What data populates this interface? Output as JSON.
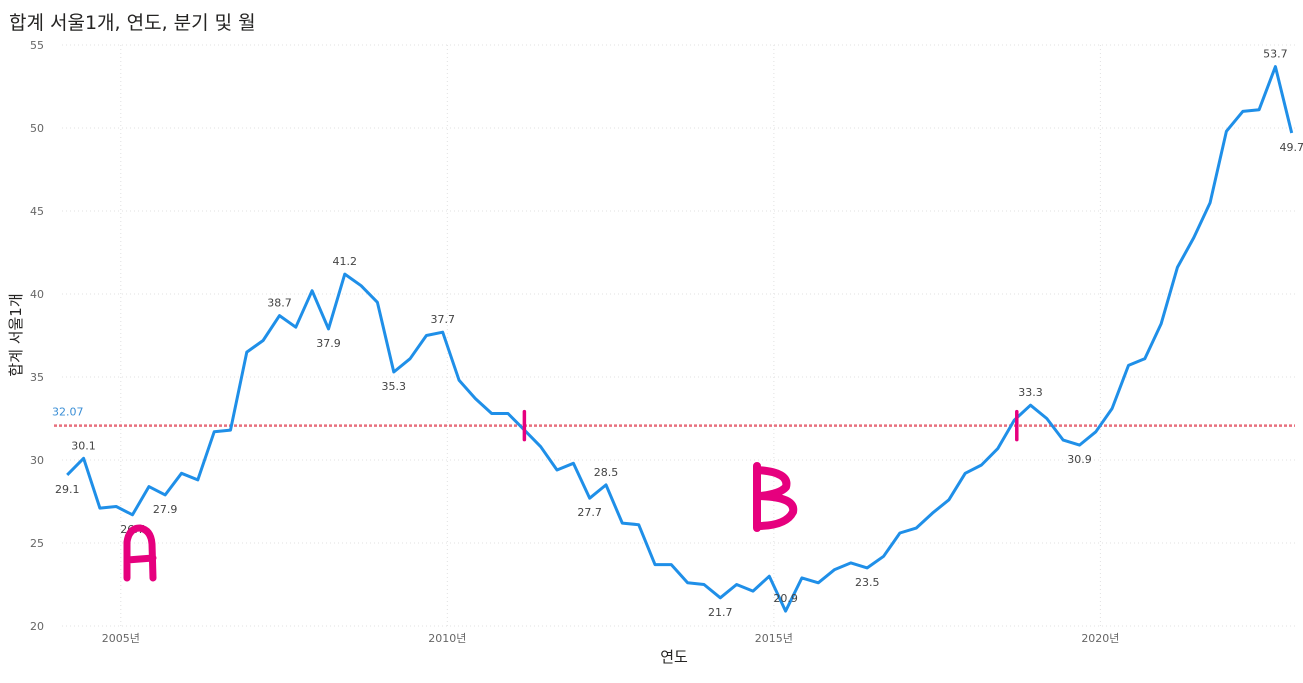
{
  "title": "합계 서울1개, 연도, 분기 및 월",
  "chart_data": {
    "type": "line",
    "xlabel": "연도",
    "ylabel": "합계 서울1개",
    "ylim": [
      20,
      55
    ],
    "yticks": [
      "20",
      "25",
      "30",
      "35",
      "40",
      "45",
      "50",
      "55"
    ],
    "xtick_labels": [
      "2005년",
      "2010년",
      "2015년",
      "2020년"
    ],
    "xtick_years": [
      2005,
      2010,
      2015,
      2020
    ],
    "grid": true,
    "legend": "none",
    "line_color": "#1f8fe8",
    "reference_line": {
      "value": 32.07,
      "label": "32.07",
      "color": "#e8707e",
      "label_color": "#3b8fd6"
    },
    "annotations": {
      "marker_color": "#e6007e",
      "A": "A",
      "B": "B"
    },
    "series": [
      {
        "x": [
          2004.18,
          2004.43,
          2004.68,
          2004.93,
          2005.18,
          2005.43,
          2005.68,
          2005.93,
          2006.18,
          2006.43,
          2006.68,
          2006.93,
          2007.18,
          2007.43,
          2007.68,
          2007.93,
          2008.18,
          2008.43,
          2008.68,
          2008.93,
          2009.18,
          2009.43,
          2009.68,
          2009.93,
          2010.18,
          2010.43,
          2010.68,
          2010.93,
          2011.18,
          2011.43,
          2011.68,
          2011.93,
          2012.18,
          2012.43,
          2012.68,
          2012.93,
          2013.18,
          2013.43,
          2013.68,
          2013.93,
          2014.18,
          2014.43,
          2014.68,
          2014.93,
          2015.18,
          2015.43,
          2015.68,
          2015.93,
          2016.18,
          2016.43,
          2016.68,
          2016.93,
          2017.18,
          2017.43,
          2017.68,
          2017.93,
          2018.18,
          2018.43,
          2018.68,
          2018.93,
          2019.18,
          2019.43,
          2019.68,
          2019.93,
          2020.18,
          2020.43,
          2020.68,
          2020.93,
          2021.18,
          2021.43,
          2021.68,
          2021.93,
          2022.18,
          2022.43,
          2022.68,
          2022.93
        ],
        "values": [
          29.1,
          30.1,
          27.1,
          27.2,
          26.7,
          28.4,
          27.9,
          29.2,
          28.8,
          31.7,
          31.8,
          36.5,
          37.2,
          38.7,
          38.0,
          40.2,
          37.9,
          41.2,
          40.5,
          39.5,
          35.3,
          36.1,
          37.5,
          37.7,
          34.8,
          33.7,
          32.8,
          32.8,
          31.8,
          30.8,
          29.4,
          29.8,
          27.7,
          28.5,
          26.2,
          26.1,
          23.7,
          23.7,
          22.6,
          22.5,
          21.7,
          22.5,
          22.1,
          23.0,
          20.9,
          22.9,
          22.6,
          23.4,
          23.8,
          23.5,
          24.2,
          25.6,
          25.9,
          26.8,
          27.6,
          29.2,
          29.7,
          30.7,
          32.4,
          33.3,
          32.5,
          31.2,
          30.9,
          31.7,
          33.1,
          35.7,
          36.1,
          38.2,
          41.6,
          43.4,
          45.5,
          49.8,
          51.0,
          51.1,
          53.7,
          49.7
        ]
      }
    ],
    "labels": [
      {
        "i": 0,
        "text": "29.1",
        "pos": "below"
      },
      {
        "i": 1,
        "text": "30.1",
        "pos": "above"
      },
      {
        "i": 4,
        "text": "26.7",
        "pos": "below"
      },
      {
        "i": 6,
        "text": "27.9",
        "pos": "below"
      },
      {
        "i": 13,
        "text": "38.7",
        "pos": "above"
      },
      {
        "i": 16,
        "text": "37.9",
        "pos": "below"
      },
      {
        "i": 17,
        "text": "41.2",
        "pos": "above"
      },
      {
        "i": 20,
        "text": "35.3",
        "pos": "below"
      },
      {
        "i": 23,
        "text": "37.7",
        "pos": "above"
      },
      {
        "i": 32,
        "text": "27.7",
        "pos": "below"
      },
      {
        "i": 33,
        "text": "28.5",
        "pos": "above"
      },
      {
        "i": 40,
        "text": "21.7",
        "pos": "below"
      },
      {
        "i": 44,
        "text": "20.9",
        "pos": "above"
      },
      {
        "i": 49,
        "text": "23.5",
        "pos": "below"
      },
      {
        "i": 59,
        "text": "33.3",
        "pos": "above"
      },
      {
        "i": 62,
        "text": "30.9",
        "pos": "below"
      },
      {
        "i": 74,
        "text": "53.7",
        "pos": "above"
      },
      {
        "i": 75,
        "text": "49.7",
        "pos": "below"
      }
    ]
  }
}
